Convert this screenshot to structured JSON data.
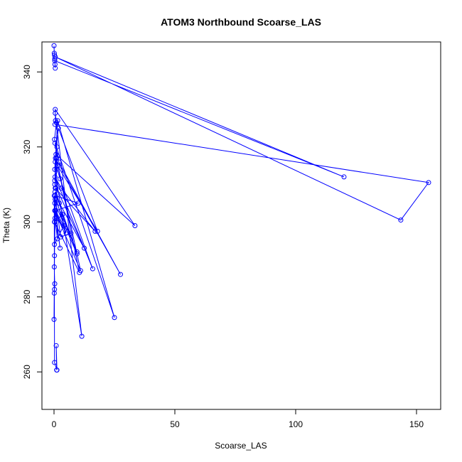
{
  "chart_data": {
    "type": "line",
    "title": "ATOM3 Northbound Scoarse_LAS",
    "xlabel": "Scoarse_LAS",
    "ylabel": "Theta (K)",
    "xlim": [
      -5,
      160
    ],
    "ylim": [
      250,
      348
    ],
    "x_ticks": [
      0,
      50,
      100,
      150
    ],
    "y_ticks": [
      260,
      280,
      300,
      320,
      340
    ],
    "x_tick_labels": [
      "0",
      "50",
      "100",
      "150"
    ],
    "y_tick_labels": [
      "260",
      "280",
      "300",
      "320",
      "340"
    ],
    "color": "#0000ff",
    "markers": "open-circle",
    "grid": false,
    "series": [
      {
        "x": [
          0.0,
          0.1,
          0.2,
          0.3,
          0.4,
          0.5,
          0.3,
          120.0,
          0.5,
          143.5,
          155.0,
          0.4,
          0.6,
          0.5,
          33.5,
          0.8,
          0.3,
          1.2,
          0.2,
          1.0,
          0.5,
          11.5,
          0.3,
          1.5,
          25.0,
          0.4,
          2.0,
          27.5,
          0.6,
          1.8,
          18.0,
          0.5,
          2.5,
          16.0,
          0.4,
          3.0,
          17.0,
          0.5,
          2.2,
          12.5,
          0.3,
          1.6,
          10.5,
          0.2,
          3.5,
          9.5,
          0.5,
          2.8,
          7.0,
          0.4,
          1.4,
          0.8,
          1.0,
          11.0,
          0.3,
          5.0,
          0.5,
          10.0,
          0.6,
          4.0,
          0.2,
          0.4,
          9.5,
          0.3,
          2.5,
          0.5,
          0.1,
          0.3,
          0.2,
          0.0,
          0.1,
          0.2,
          0.3,
          0.1,
          0.2,
          1.2,
          0.9,
          1.1
        ],
        "y": [
          347.0,
          345.0,
          344.5,
          343.5,
          342.0,
          341.0,
          343.0,
          312.0,
          344.0,
          300.5,
          310.5,
          326.0,
          327.0,
          330.0,
          299.0,
          318.0,
          311.0,
          320.0,
          322.0,
          326.5,
          329.0,
          269.5,
          314.0,
          327.0,
          274.5,
          321.0,
          316.0,
          286.0,
          317.0,
          325.0,
          297.5,
          316.0,
          311.5,
          287.5,
          312.0,
          309.0,
          297.5,
          309.0,
          305.0,
          293.0,
          310.0,
          315.0,
          286.5,
          300.0,
          302.0,
          292.0,
          306.0,
          296.0,
          297.0,
          301.0,
          295.5,
          309.0,
          317.0,
          287.0,
          303.0,
          297.0,
          307.0,
          305.0,
          303.0,
          299.0,
          294.0,
          308.0,
          291.5,
          305.0,
          293.0,
          303.0,
          288.0,
          283.5,
          282.0,
          274.0,
          281.0,
          291.0,
          300.0,
          307.0,
          262.5,
          260.5,
          267.0,
          260.5
        ]
      }
    ]
  }
}
